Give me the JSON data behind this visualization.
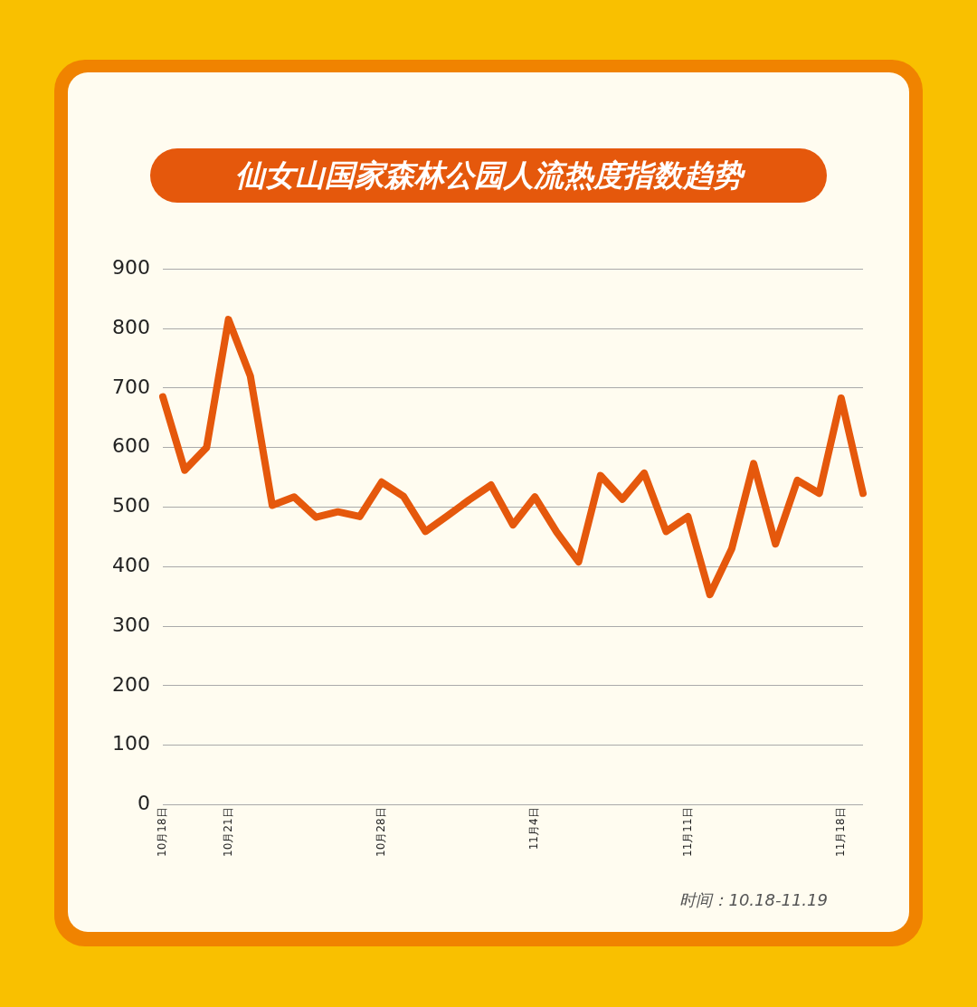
{
  "chart_data": {
    "type": "line",
    "title": "仙女山国家森林公园人流热度指数趋势",
    "categories": [
      "10月18日",
      null,
      null,
      "10月21日",
      null,
      null,
      null,
      null,
      null,
      null,
      "10月28日",
      null,
      null,
      null,
      null,
      null,
      null,
      "11月4日",
      null,
      null,
      null,
      null,
      null,
      null,
      "11月11日",
      null,
      null,
      null,
      null,
      null,
      null,
      "11月18日",
      null
    ],
    "values": [
      685,
      562,
      600,
      815,
      720,
      503,
      517,
      483,
      492,
      484,
      542,
      518,
      459,
      485,
      512,
      537,
      470,
      517,
      458,
      408,
      553,
      513,
      557,
      459,
      484,
      353,
      430,
      573,
      438,
      545,
      523,
      683,
      523
    ],
    "color": "#e5580c",
    "ylim": [
      0,
      900
    ],
    "yticks": [
      0,
      100,
      200,
      300,
      400,
      500,
      600,
      700,
      800,
      900
    ],
    "grid": "y",
    "marker": "none",
    "line_style": "solid",
    "annotations": [
      "时间：10.18-11.19"
    ]
  }
}
